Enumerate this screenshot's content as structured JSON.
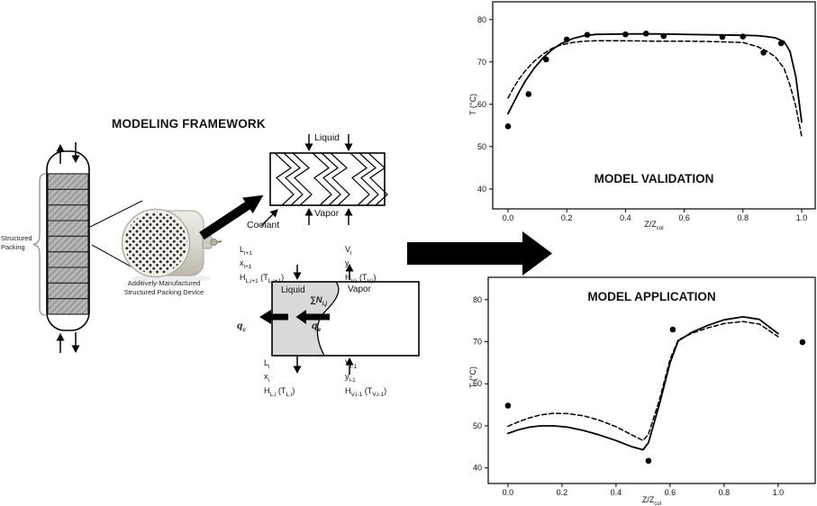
{
  "figure": {
    "framework_title": "MODELING FRAMEWORK",
    "column_label": "Structured\nPacking",
    "device_caption": "Additively-Manufactured\nStructured Packing Device",
    "exchanger": {
      "liquid_label": "Liquid",
      "vapor_label": "Vapor",
      "coolant_label": "Coolant"
    },
    "control_volume": {
      "liquid_label": "Liquid",
      "vapor_label": "Vapor",
      "flux_label": "∑N~i,j~",
      "qc_label": "q~c~",
      "qe_label": "q~e~",
      "stream_top_left": "L~i+1~\nx~i+1~\nH~L,i+1~ (T~L,i+1~)",
      "stream_top_right": "V~i~\ny~i~\nH~V,i~ (T~V,i~)",
      "stream_bottom_left": "L~i~\nx~i~\nH~L,i~ (T~L,i~)",
      "stream_bottom_right": "V~i-1~\ny~i-1~\nH~V,i-1~ (T~V,i-1~)"
    }
  },
  "chart_data": [
    {
      "type": "line+scatter",
      "title": "MODEL VALIDATION",
      "title_position": "inside-bottom-center",
      "xlabel": "Z/Z~col~",
      "ylabel": "T (°C)",
      "xlim": [
        -0.052,
        1.046
      ],
      "ylim": [
        35.3,
        84.2
      ],
      "xticks": [
        0.0,
        0.2,
        0.4,
        0.6,
        0.8,
        1.0
      ],
      "xtick_labels": [
        "0.0",
        "0.2",
        "0.4",
        "0.6",
        "0.8",
        "1.0"
      ],
      "yticks": [
        40,
        50,
        60,
        70,
        80
      ],
      "ytick_labels": [
        "40",
        "50",
        "60",
        "70",
        "80"
      ],
      "grid": false,
      "legend": "none",
      "series": [
        {
          "name": "model-solid",
          "type": "line",
          "style": "solid",
          "x": [
            0,
            0.02,
            0.04,
            0.06,
            0.09,
            0.12,
            0.15,
            0.18,
            0.22,
            0.26,
            0.3,
            0.4,
            0.5,
            0.6,
            0.7,
            0.8,
            0.85,
            0.88,
            0.91,
            0.94,
            0.96,
            0.98,
            1.0
          ],
          "y": [
            57.8,
            60.5,
            63.2,
            65.6,
            68.6,
            71.0,
            72.9,
            74.3,
            75.5,
            76.2,
            76.5,
            76.6,
            76.6,
            76.5,
            76.4,
            76.3,
            76.2,
            76.0,
            75.7,
            74.8,
            72.5,
            66.5,
            55.8
          ]
        },
        {
          "name": "model-dashed",
          "type": "line",
          "style": "dashed",
          "x": [
            0,
            0.02,
            0.04,
            0.06,
            0.09,
            0.12,
            0.15,
            0.18,
            0.22,
            0.26,
            0.3,
            0.4,
            0.5,
            0.6,
            0.7,
            0.8,
            0.85,
            0.88,
            0.91,
            0.94,
            0.96,
            0.98,
            1.0
          ],
          "y": [
            61.5,
            64.0,
            66.2,
            68.0,
            70.2,
            71.9,
            73.2,
            74.0,
            74.6,
            74.9,
            75.0,
            75.0,
            74.9,
            74.9,
            74.8,
            74.6,
            73.6,
            72.6,
            71.2,
            68.5,
            64.5,
            59.5,
            52.4
          ]
        },
        {
          "name": "experimental-data",
          "type": "scatter",
          "points": [
            [
              0.0,
              54.8
            ],
            [
              0.07,
              62.4
            ],
            [
              0.13,
              70.6
            ],
            [
              0.2,
              75.3
            ],
            [
              0.27,
              76.4
            ],
            [
              0.4,
              76.5
            ],
            [
              0.47,
              76.7
            ],
            [
              0.53,
              76.1
            ],
            [
              0.73,
              75.9
            ],
            [
              0.8,
              76.0
            ],
            [
              0.87,
              72.2
            ],
            [
              0.93,
              74.4
            ]
          ]
        }
      ]
    },
    {
      "type": "line+scatter",
      "title": "MODEL APPLICATION",
      "title_position": "inside-top-center",
      "xlabel": "Z/Z~col~",
      "ylabel": "T (°C)",
      "xlim": [
        -0.073,
        1.137
      ],
      "ylim": [
        36.3,
        85.3
      ],
      "xticks": [
        0.0,
        0.2,
        0.4,
        0.6,
        0.8,
        1.0
      ],
      "xtick_labels": [
        "0.0",
        "0.2",
        "0.4",
        "0.6",
        "0.8",
        "1.0"
      ],
      "yticks": [
        40,
        50,
        60,
        70,
        80
      ],
      "ytick_labels": [
        "40",
        "50",
        "60",
        "70",
        "80"
      ],
      "grid": false,
      "legend": "none",
      "series": [
        {
          "name": "model-solid",
          "type": "line",
          "style": "solid",
          "x": [
            0,
            0.04,
            0.08,
            0.12,
            0.17,
            0.22,
            0.28,
            0.34,
            0.4,
            0.46,
            0.5,
            0.52,
            0.56,
            0.6,
            0.63,
            0.68,
            0.74,
            0.8,
            0.87,
            0.93,
            1.0
          ],
          "y": [
            48.2,
            49.1,
            49.7,
            50.0,
            50.0,
            49.7,
            48.9,
            47.8,
            46.5,
            45.0,
            44.3,
            46.0,
            55.0,
            65.0,
            70.2,
            72.2,
            73.9,
            75.2,
            75.9,
            75.3,
            71.9
          ]
        },
        {
          "name": "model-dashed",
          "type": "line",
          "style": "dashed",
          "x": [
            0,
            0.04,
            0.08,
            0.12,
            0.17,
            0.22,
            0.28,
            0.34,
            0.4,
            0.46,
            0.5,
            0.52,
            0.56,
            0.6,
            0.63,
            0.68,
            0.74,
            0.8,
            0.87,
            0.93,
            1.0
          ],
          "y": [
            49.9,
            51.0,
            51.9,
            52.6,
            53.0,
            52.9,
            52.4,
            51.3,
            49.8,
            47.8,
            46.5,
            48.0,
            56.0,
            65.8,
            70.4,
            72.0,
            73.3,
            74.3,
            74.8,
            74.2,
            71.2
          ]
        },
        {
          "name": "experimental-data",
          "type": "scatter",
          "points": [
            [
              0.0,
              54.8
            ],
            [
              0.52,
              41.7
            ],
            [
              0.61,
              72.9
            ],
            [
              1.09,
              69.9
            ]
          ]
        }
      ]
    }
  ]
}
